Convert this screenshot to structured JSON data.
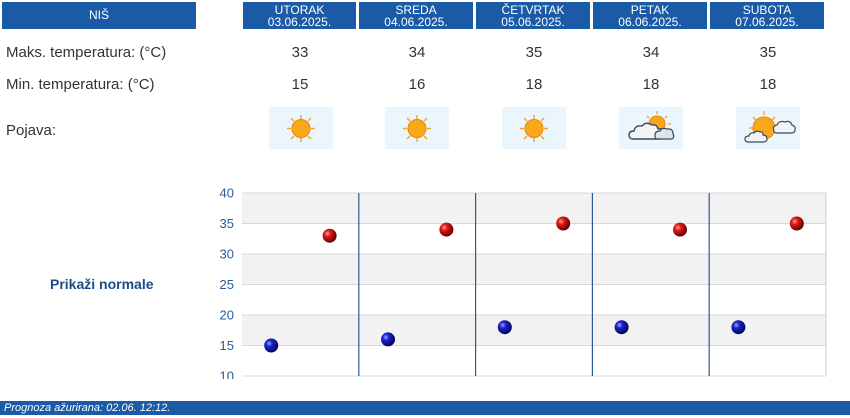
{
  "header": {
    "city": "NIŠ",
    "days": [
      {
        "name": "UTORAK",
        "date": "03.06.2025."
      },
      {
        "name": "SREDA",
        "date": "04.06.2025."
      },
      {
        "name": "ČETVRTAK",
        "date": "05.06.2025."
      },
      {
        "name": "PETAK",
        "date": "06.06.2025."
      },
      {
        "name": "SUBOTA",
        "date": "07.06.2025."
      }
    ]
  },
  "rows": {
    "max_label": "Maks. temperatura: (°C)",
    "min_label": "Min. temperatura: (°C)",
    "phenomenon_label": "Pojava:",
    "max": [
      "33",
      "34",
      "35",
      "34",
      "35"
    ],
    "min": [
      "15",
      "16",
      "18",
      "18",
      "18"
    ],
    "icons": [
      "sun-icon",
      "sun-icon",
      "sun-icon",
      "sun-behind-clouds-icon",
      "partly-cloudy-sun-icon"
    ]
  },
  "normals_link": "Prikaži normale",
  "footer": {
    "text": "Prognoza ažurirana:  02.06. 12:12."
  },
  "colors": {
    "header_bg": "#1a5aa6",
    "max_point": "#cc1111",
    "min_point": "#1111bb",
    "icon_bg": "#eaf6fc"
  },
  "chart_data": {
    "type": "scatter",
    "categories": [
      "UTORAK",
      "SREDA",
      "ČETVRTAK",
      "PETAK",
      "SUBOTA"
    ],
    "series": [
      {
        "values": [
          33,
          34,
          35,
          34,
          35
        ]
      },
      {
        "values": [
          15,
          16,
          18,
          18,
          18
        ]
      }
    ],
    "ylim": [
      10,
      40
    ],
    "yticks": [
      "40",
      "35",
      "30",
      "25",
      "20",
      "15",
      "10"
    ],
    "grid": true
  }
}
